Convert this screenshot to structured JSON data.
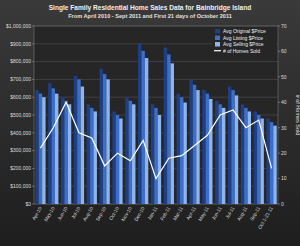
{
  "chart_data": {
    "type": "bar",
    "title": "Single Family Residential Home Sales Data for Bainbridge Island",
    "subtitle": "From April 2010 - Sept 2011 and First 21 days of October 2011",
    "y2_label": "# of Homes Sold",
    "categories": [
      "Apr-10",
      "May-10",
      "Jun-10",
      "Jul-10",
      "Aug-10",
      "Sep-10",
      "Oct-10",
      "Nov-10",
      "Dec-10",
      "Jan-11",
      "Feb-11",
      "Mar-11",
      "Apr-11",
      "May-11",
      "Jun-11",
      "Jul-11",
      "Aug-11",
      "Sep-11",
      "Oct 1-21 11"
    ],
    "series": [
      {
        "name": "Avg Original $Price",
        "color": "#1d3f86",
        "values": [
          640000,
          680000,
          600000,
          720000,
          560000,
          760000,
          520000,
          600000,
          900000,
          560000,
          880000,
          620000,
          700000,
          640000,
          580000,
          660000,
          560000,
          520000,
          480000
        ]
      },
      {
        "name": "Avg Listing $Price",
        "color": "#3c6fc8",
        "values": [
          620000,
          650000,
          580000,
          700000,
          540000,
          730000,
          500000,
          580000,
          860000,
          540000,
          840000,
          600000,
          670000,
          620000,
          560000,
          640000,
          540000,
          500000,
          460000
        ]
      },
      {
        "name": "Avg Selling $Price",
        "color": "#8fb3ea",
        "values": [
          600000,
          620000,
          560000,
          660000,
          520000,
          700000,
          480000,
          560000,
          820000,
          500000,
          790000,
          570000,
          640000,
          590000,
          540000,
          610000,
          520000,
          480000,
          440000
        ]
      },
      {
        "name": "# of Homes Sold",
        "type": "line",
        "axis": "y2",
        "color": "#ffffff",
        "values": [
          22,
          30,
          40,
          28,
          26,
          15,
          20,
          17,
          25,
          10,
          18,
          19,
          23,
          27,
          35,
          37,
          30,
          33,
          14
        ]
      }
    ],
    "ylim": [
      0,
      1000000
    ],
    "yticks": [
      {
        "value": 0,
        "label": "$0"
      },
      {
        "value": 100000,
        "label": "$100,000"
      },
      {
        "value": 200000,
        "label": "$200,000"
      },
      {
        "value": 300000,
        "label": "$300,000"
      },
      {
        "value": 400000,
        "label": "$400,000"
      },
      {
        "value": 500000,
        "label": "$500,000"
      },
      {
        "value": 600000,
        "label": "$600,000"
      },
      {
        "value": 700000,
        "label": "$700,000"
      },
      {
        "value": 800000,
        "label": "$800,000"
      },
      {
        "value": 900000,
        "label": "$900,000"
      },
      {
        "value": 1000000,
        "label": "$1,000,000"
      }
    ],
    "y2lim": [
      0,
      70
    ],
    "y2ticks": [
      0,
      10,
      20,
      30,
      40,
      50,
      60,
      70
    ],
    "grid": true,
    "legend": "top-right"
  }
}
